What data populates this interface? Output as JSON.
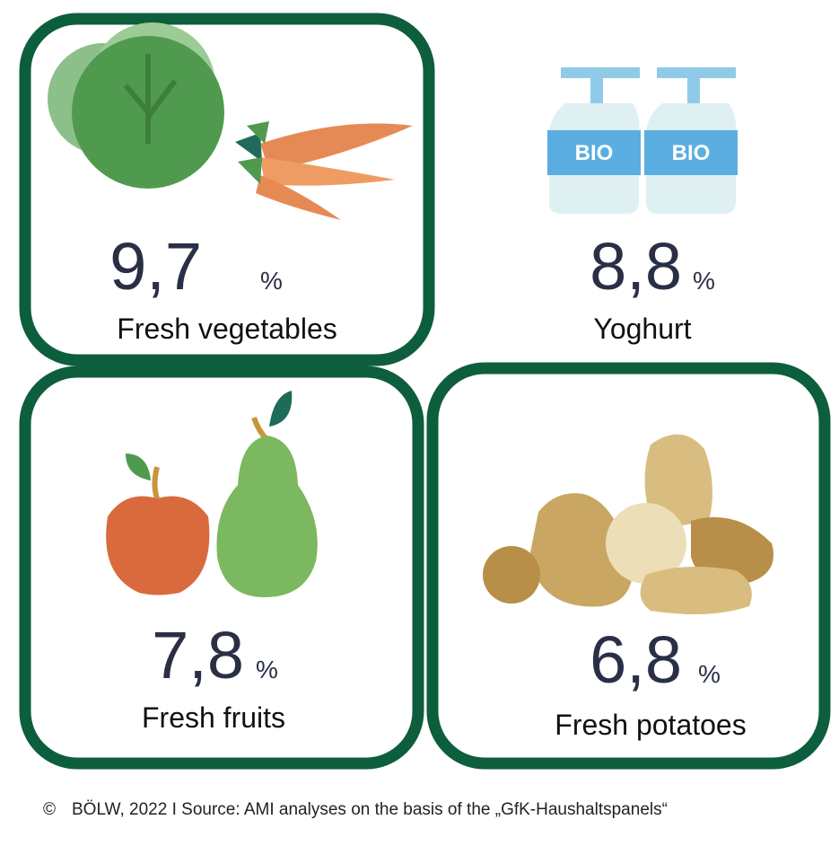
{
  "items": [
    {
      "value": "9,7",
      "unit": "%",
      "label": "Fresh vegetables"
    },
    {
      "value": "8,8",
      "unit": "%",
      "label": "Yoghurt"
    },
    {
      "value": "7,8",
      "unit": "%",
      "label": "Fresh fruits"
    },
    {
      "value": "6,8",
      "unit": "%",
      "label": "Fresh potatoes"
    }
  ],
  "footer": {
    "symbol": "©",
    "text": "BÖLW, 2022 I Source: AMI analyses on the basis of the „GfK-Haushaltspanels“"
  }
}
